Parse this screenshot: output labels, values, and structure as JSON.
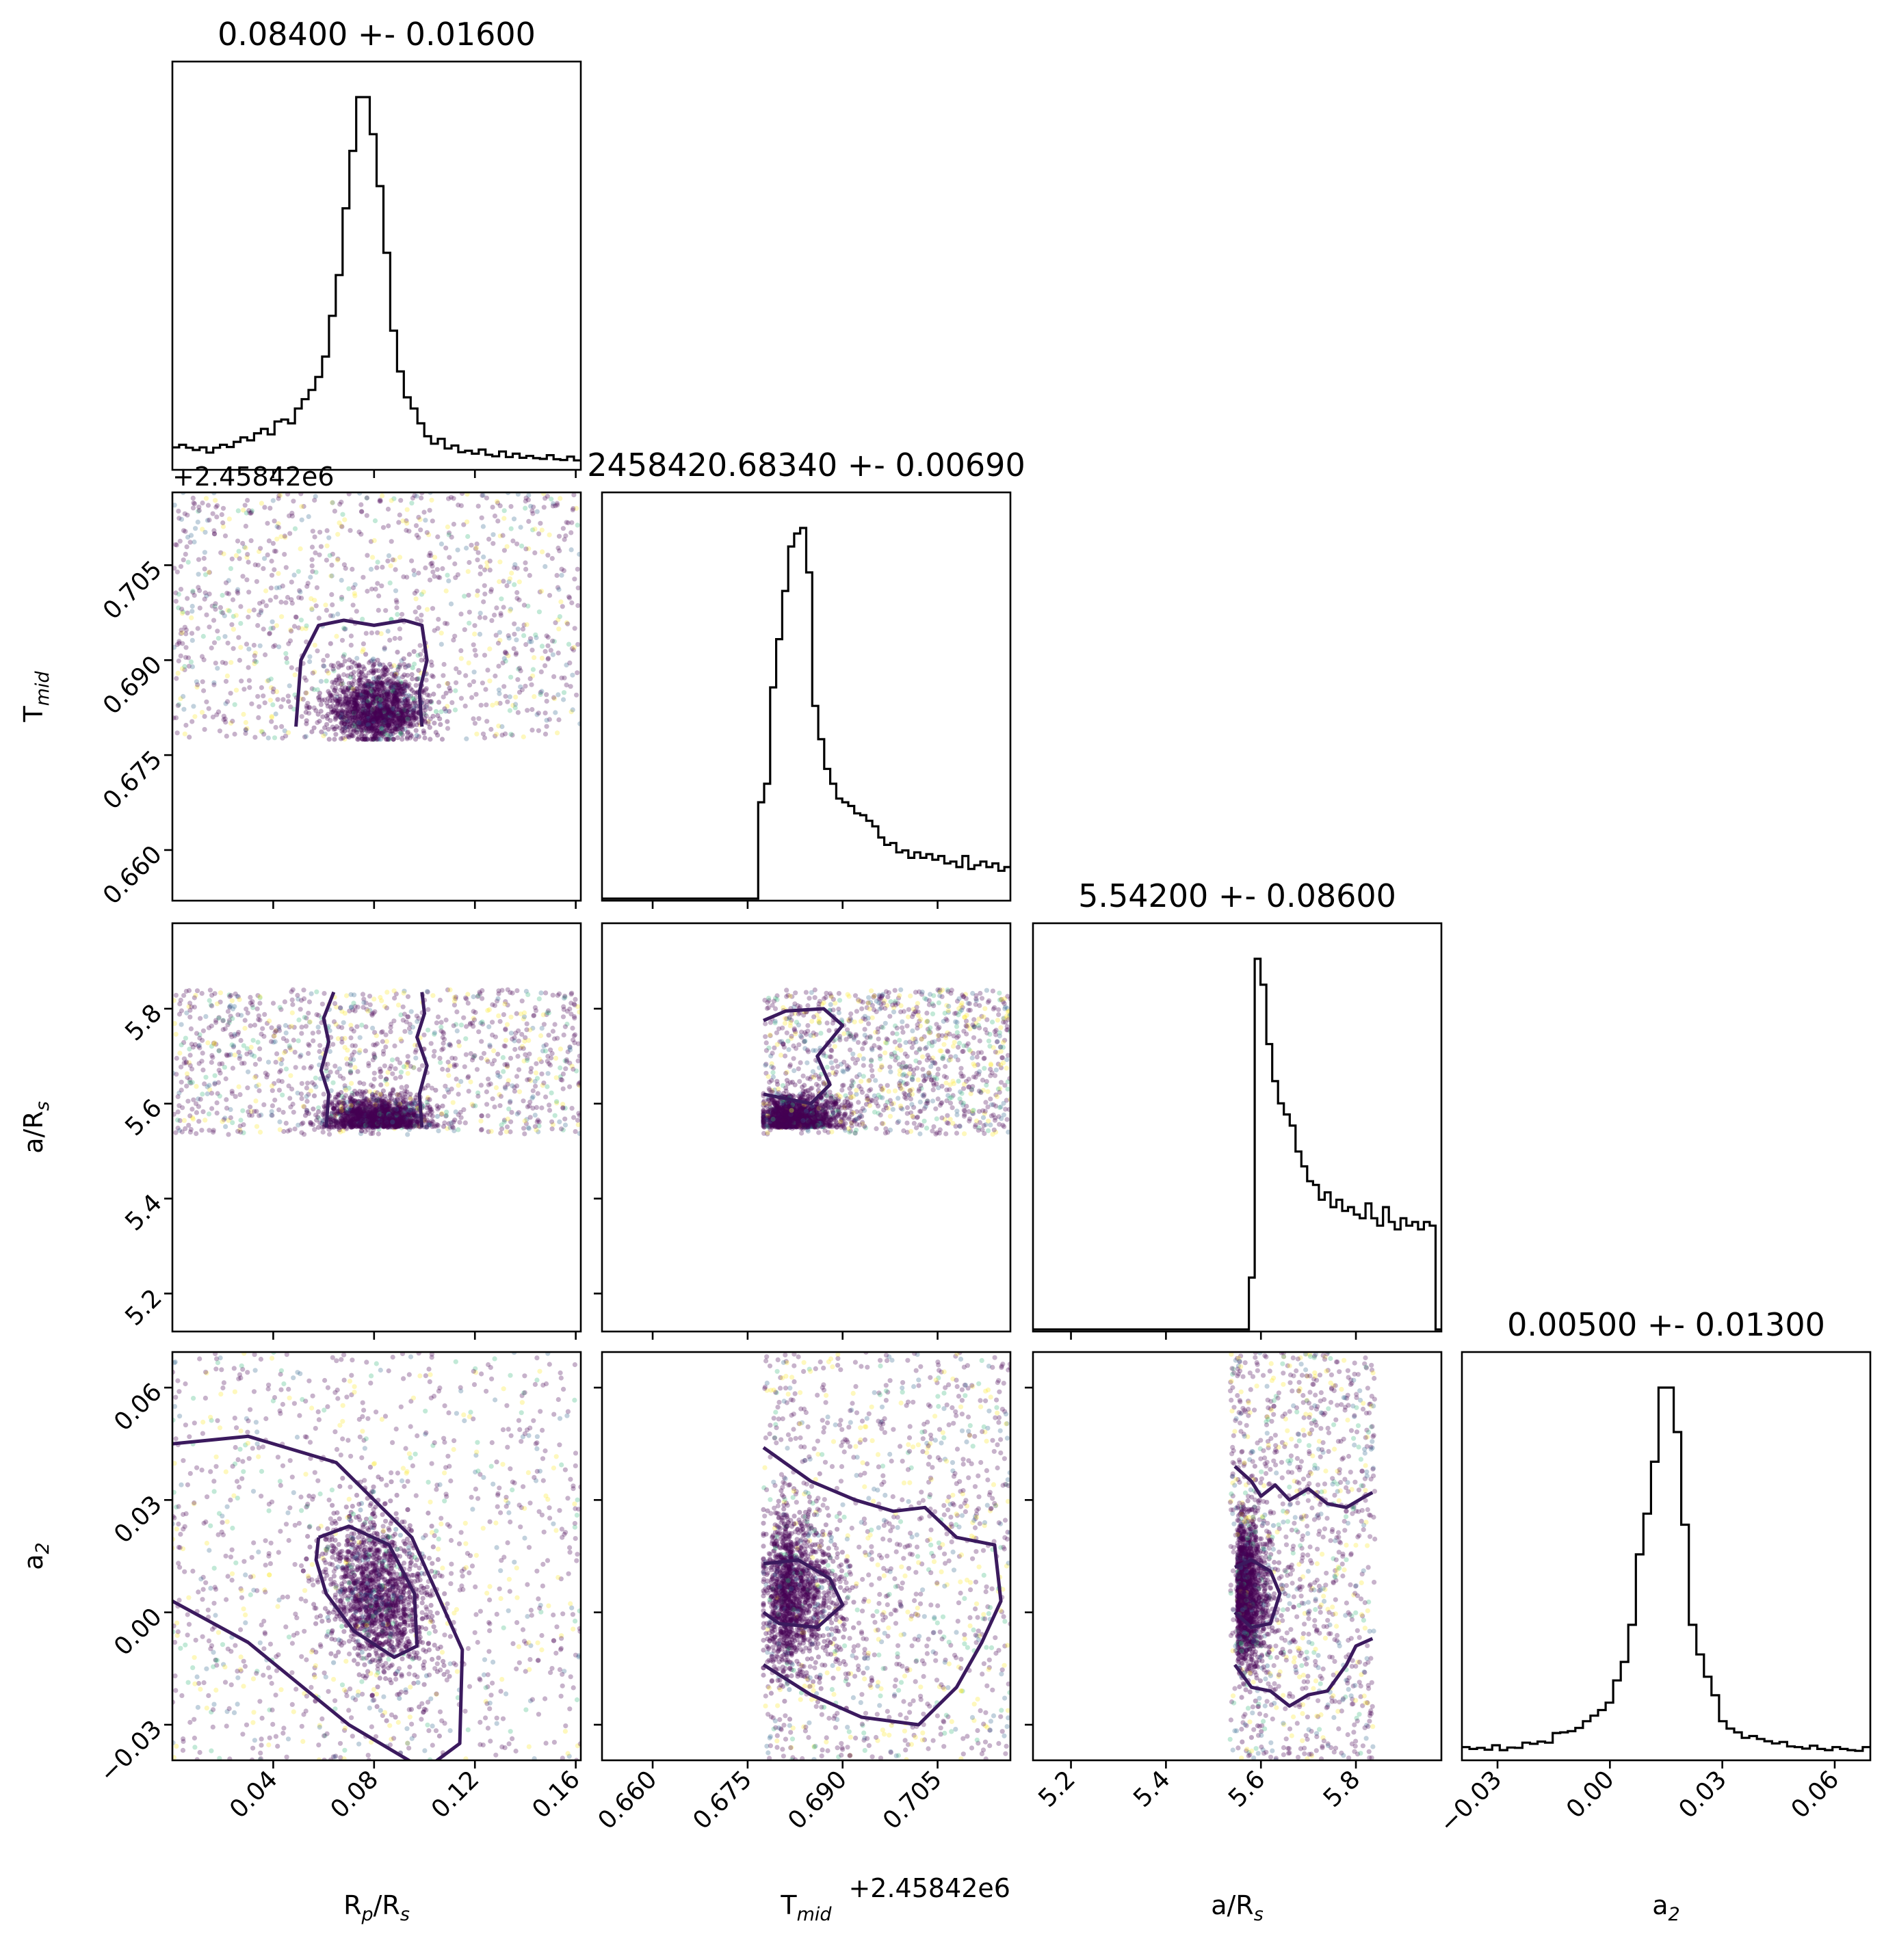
{
  "chart_data": {
    "type": "corner",
    "parameters": [
      {
        "id": "rp",
        "label_main": "R",
        "label_sub": "p",
        "label_after": "/R",
        "label_sub2": "s",
        "range": [
          0.0,
          0.162
        ],
        "ticks": [
          0.04,
          0.08,
          0.12,
          0.16
        ],
        "tick_labels": [
          "0.04",
          "0.08",
          "0.12",
          "0.16"
        ],
        "offset_text": "",
        "title": "0.08400 +- 0.01600",
        "peak": 0.081,
        "hist": [
          5.5,
          6.2,
          5.4,
          4.8,
          5.5,
          4.1,
          5.4,
          6.2,
          5.6,
          7.0,
          8.2,
          7.4,
          9.3,
          10.5,
          9.0,
          12.5,
          13.0,
          12.0,
          16.0,
          18.5,
          21.0,
          24.5,
          30.0,
          41.0,
          52.0,
          70.0,
          85.5,
          100.0,
          100.0,
          90.0,
          76.0,
          58.0,
          37.0,
          26.0,
          19.0,
          16.0,
          12.0,
          8.5,
          6.5,
          7.8,
          5.2,
          6.0,
          4.2,
          4.6,
          3.8,
          4.9,
          3.5,
          3.1,
          4.4,
          2.9,
          3.8,
          2.7,
          3.2,
          2.6,
          2.4,
          3.4,
          2.3,
          2.1,
          3.0,
          2.0
        ]
      },
      {
        "id": "tmid",
        "label_main": "T",
        "label_sub": "mid",
        "label_after": "",
        "label_sub2": "",
        "range": [
          0.652,
          0.7165
        ],
        "ticks": [
          0.66,
          0.675,
          0.69,
          0.705
        ],
        "tick_labels": [
          "0.660",
          "0.675",
          "0.690",
          "0.705"
        ],
        "offset_text": "+2.45842e6",
        "title": "2458420.68340 +- 0.00690",
        "peak": 0.683,
        "hist": [
          0,
          0,
          0,
          0,
          0,
          0,
          0,
          0,
          0,
          0,
          0,
          0,
          0,
          0,
          0,
          0,
          0,
          0,
          0,
          0,
          0,
          0,
          0,
          0,
          0,
          0,
          26.0,
          31.0,
          57.0,
          70.0,
          83.0,
          95.0,
          98.5,
          100.0,
          88.0,
          52.0,
          43.0,
          35.0,
          31.0,
          27.0,
          26.0,
          25.0,
          23.0,
          22.5,
          21.0,
          19.5,
          16.5,
          14.5,
          15.0,
          12.5,
          13.0,
          11.0,
          12.5,
          11.0,
          12.0,
          10.5,
          11.5,
          9.5,
          10.0,
          8.5,
          11.5,
          8.0,
          9.0,
          10.0,
          8.5,
          9.5,
          7.5,
          8.5
        ]
      },
      {
        "id": "ars",
        "label_main": "a/R",
        "label_sub": "s",
        "label_after": "",
        "label_sub2": "",
        "range": [
          5.12,
          5.98
        ],
        "ticks": [
          5.2,
          5.4,
          5.6,
          5.8
        ],
        "tick_labels": [
          "5.2",
          "5.4",
          "5.6",
          "5.8"
        ],
        "offset_text": "",
        "title": "5.54200 +- 0.08600",
        "peak": 5.553,
        "hist": [
          0,
          0,
          0,
          0,
          0,
          0,
          0,
          0,
          0,
          0,
          0,
          0,
          0,
          0,
          0,
          0,
          0,
          0,
          0,
          0,
          0,
          0,
          0,
          0,
          0,
          0,
          0,
          0,
          0,
          0,
          0,
          0,
          0,
          0,
          0,
          0,
          0,
          14.0,
          100.0,
          93.0,
          77.0,
          67.0,
          61.0,
          58.0,
          55.0,
          48.0,
          44.0,
          40.0,
          39.0,
          35.0,
          37.0,
          33.0,
          35.0,
          32.0,
          33.0,
          31.0,
          30.0,
          34.0,
          30.0,
          28.0,
          33.0,
          29.0,
          27.0,
          30.0,
          28.0,
          29.0,
          27.0,
          29.0,
          28.0,
          0
        ]
      },
      {
        "id": "a2",
        "label_main": "a",
        "label_sub": "2",
        "label_after": "",
        "label_sub2": "",
        "range": [
          -0.0395,
          0.0695
        ],
        "ticks": [
          -0.03,
          0.0,
          0.03,
          0.06
        ],
        "tick_labels": [
          "−0.03",
          "0.00",
          "0.03",
          "0.06"
        ],
        "offset_text": "",
        "title": "0.00500 +- 0.01300",
        "peak": 0.005,
        "hist": [
          3.0,
          2.5,
          2.8,
          2.3,
          3.5,
          2.2,
          2.9,
          2.8,
          4.2,
          3.9,
          4.5,
          4.2,
          6.8,
          7.0,
          7.3,
          8.2,
          10.0,
          11.5,
          13.0,
          15.0,
          21.0,
          26.0,
          36.0,
          55.0,
          66.0,
          80.0,
          100.0,
          100.0,
          88.0,
          63.0,
          36.0,
          28.0,
          22.0,
          17.0,
          10.0,
          8.0,
          7.0,
          5.5,
          6.0,
          5.2,
          4.6,
          4.0,
          4.4,
          3.2,
          3.0,
          2.6,
          3.4,
          2.5,
          2.2,
          3.0,
          2.5,
          2.2,
          2.0,
          3.0
        ]
      }
    ],
    "axes_offset_text": "+2.45842e6",
    "scatter_colormap": [
      "#440154",
      "#31688e",
      "#35b779",
      "#fde725"
    ],
    "line_color": "#000000",
    "contour_color": "#3b1a5e"
  }
}
